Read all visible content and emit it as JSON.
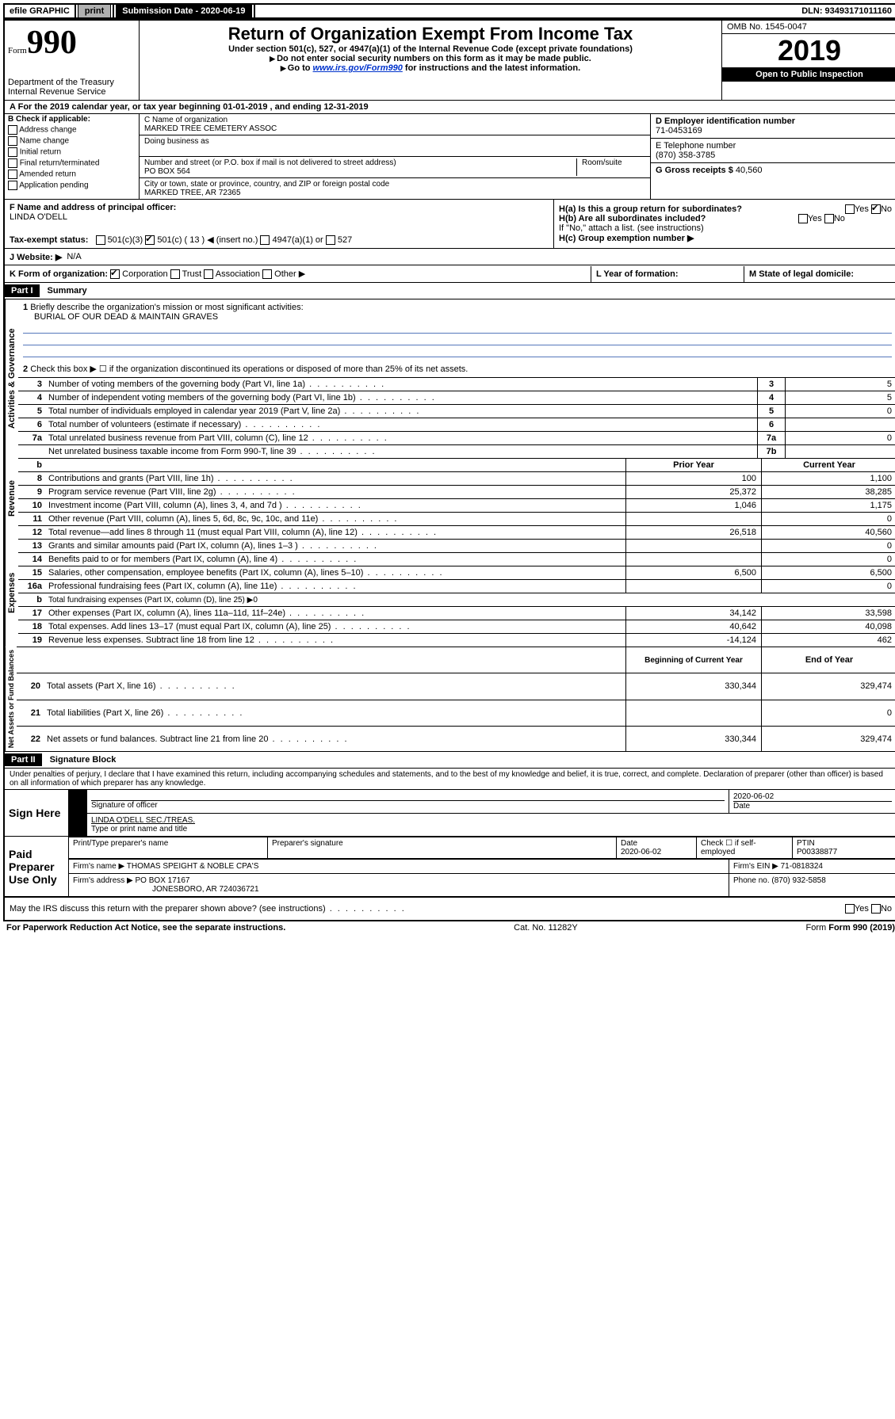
{
  "topbar": {
    "efile": "efile GRAPHIC",
    "print": "print",
    "sub_label": "Submission Date - 2020-06-19",
    "dln": "DLN: 93493171011160"
  },
  "header": {
    "form_label": "Form",
    "form_num": "990",
    "dept": "Department of the Treasury\nInternal Revenue Service",
    "title": "Return of Organization Exempt From Income Tax",
    "sub1": "Under section 501(c), 527, or 4947(a)(1) of the Internal Revenue Code (except private foundations)",
    "sub2": "Do not enter social security numbers on this form as it may be made public.",
    "sub3_pre": "Go to ",
    "sub3_link": "www.irs.gov/Form990",
    "sub3_post": " for instructions and the latest information.",
    "omb": "OMB No. 1545-0047",
    "year": "2019",
    "inspect": "Open to Public Inspection"
  },
  "a_line": "For the 2019 calendar year, or tax year beginning 01-01-2019   , and ending 12-31-2019",
  "b": {
    "title": "B Check if applicable:",
    "r1": "Address change",
    "r2": "Name change",
    "r3": "Initial return",
    "r4": "Final return/terminated",
    "r5": "Amended return",
    "r6": "Application pending"
  },
  "c": {
    "name_label": "C Name of organization",
    "name": "MARKED TREE CEMETERY ASSOC",
    "dba": "Doing business as",
    "addr_label": "Number and street (or P.O. box if mail is not delivered to street address)",
    "room": "Room/suite",
    "addr": "PO BOX 564",
    "city_label": "City or town, state or province, country, and ZIP or foreign postal code",
    "city": "MARKED TREE, AR  72365"
  },
  "d": {
    "label": "D Employer identification number",
    "val": "71-0453169"
  },
  "e": {
    "label": "E Telephone number",
    "val": "(870) 358-3785"
  },
  "g": {
    "label": "G Gross receipts $",
    "val": "40,560"
  },
  "f": {
    "label": "F  Name and address of principal officer:",
    "val": "LINDA O'DELL"
  },
  "h": {
    "a": "H(a)  Is this a group return for subordinates?",
    "b": "H(b)  Are all subordinates included?",
    "b_note": "If \"No,\" attach a list. (see instructions)",
    "c": "H(c)  Group exemption number ▶",
    "yes": "Yes",
    "no": "No"
  },
  "i": {
    "label": "Tax-exempt status:",
    "o1": "501(c)(3)",
    "o2": "501(c) ( 13 ) ◀ (insert no.)",
    "o3": "4947(a)(1) or",
    "o4": "527"
  },
  "j": {
    "label": "J    Website: ▶",
    "val": "N/A"
  },
  "k": {
    "label": "K Form of organization:",
    "o1": "Corporation",
    "o2": "Trust",
    "o3": "Association",
    "o4": "Other ▶"
  },
  "l": {
    "label": "L Year of formation:"
  },
  "m": {
    "label": "M State of legal domicile:"
  },
  "part1": {
    "title": "Part I",
    "sub": "Summary",
    "q1": "Briefly describe the organization's mission or most significant activities:",
    "q1a": "BURIAL OF OUR DEAD & MAINTAIN GRAVES",
    "q2": "Check this box ▶ ☐  if the organization discontinued its operations or disposed of more than 25% of its net assets.",
    "sections": {
      "ag": "Activities & Governance",
      "rev": "Revenue",
      "exp": "Expenses",
      "net": "Net Assets or Fund Balances"
    },
    "rows_single": [
      {
        "n": "3",
        "t": "Number of voting members of the governing body (Part VI, line 1a)",
        "c": "3",
        "v": "5"
      },
      {
        "n": "4",
        "t": "Number of independent voting members of the governing body (Part VI, line 1b)",
        "c": "4",
        "v": "5"
      },
      {
        "n": "5",
        "t": "Total number of individuals employed in calendar year 2019 (Part V, line 2a)",
        "c": "5",
        "v": "0"
      },
      {
        "n": "6",
        "t": "Total number of volunteers (estimate if necessary)",
        "c": "6",
        "v": ""
      },
      {
        "n": "7a",
        "t": "Total unrelated business revenue from Part VIII, column (C), line 12",
        "c": "7a",
        "v": "0"
      },
      {
        "n": "",
        "t": "Net unrelated business taxable income from Form 990-T, line 39",
        "c": "7b",
        "v": ""
      }
    ],
    "col_headers": {
      "b": "b",
      "py": "Prior Year",
      "cy": "Current Year",
      "bcy": "Beginning of Current Year",
      "eoy": "End of Year"
    },
    "rows_rev": [
      {
        "n": "8",
        "t": "Contributions and grants (Part VIII, line 1h)",
        "py": "100",
        "cy": "1,100"
      },
      {
        "n": "9",
        "t": "Program service revenue (Part VIII, line 2g)",
        "py": "25,372",
        "cy": "38,285"
      },
      {
        "n": "10",
        "t": "Investment income (Part VIII, column (A), lines 3, 4, and 7d )",
        "py": "1,046",
        "cy": "1,175"
      },
      {
        "n": "11",
        "t": "Other revenue (Part VIII, column (A), lines 5, 6d, 8c, 9c, 10c, and 11e)",
        "py": "",
        "cy": "0"
      },
      {
        "n": "12",
        "t": "Total revenue—add lines 8 through 11 (must equal Part VIII, column (A), line 12)",
        "py": "26,518",
        "cy": "40,560"
      }
    ],
    "rows_exp": [
      {
        "n": "13",
        "t": "Grants and similar amounts paid (Part IX, column (A), lines 1–3 )",
        "py": "",
        "cy": "0"
      },
      {
        "n": "14",
        "t": "Benefits paid to or for members (Part IX, column (A), line 4)",
        "py": "",
        "cy": "0"
      },
      {
        "n": "15",
        "t": "Salaries, other compensation, employee benefits (Part IX, column (A), lines 5–10)",
        "py": "6,500",
        "cy": "6,500"
      },
      {
        "n": "16a",
        "t": "Professional fundraising fees (Part IX, column (A), line 11e)",
        "py": "",
        "cy": "0"
      },
      {
        "n": "b",
        "t": "Total fundraising expenses (Part IX, column (D), line 25) ▶0",
        "py": null,
        "cy": null
      },
      {
        "n": "17",
        "t": "Other expenses (Part IX, column (A), lines 11a–11d, 11f–24e)",
        "py": "34,142",
        "cy": "33,598"
      },
      {
        "n": "18",
        "t": "Total expenses. Add lines 13–17 (must equal Part IX, column (A), line 25)",
        "py": "40,642",
        "cy": "40,098"
      },
      {
        "n": "19",
        "t": "Revenue less expenses. Subtract line 18 from line 12",
        "py": "-14,124",
        "cy": "462"
      }
    ],
    "rows_net": [
      {
        "n": "20",
        "t": "Total assets (Part X, line 16)",
        "py": "330,344",
        "cy": "329,474"
      },
      {
        "n": "21",
        "t": "Total liabilities (Part X, line 26)",
        "py": "",
        "cy": "0"
      },
      {
        "n": "22",
        "t": "Net assets or fund balances. Subtract line 21 from line 20",
        "py": "330,344",
        "cy": "329,474"
      }
    ]
  },
  "part2": {
    "title": "Part II",
    "sub": "Signature Block",
    "decl": "Under penalties of perjury, I declare that I have examined this return, including accompanying schedules and statements, and to the best of my knowledge and belief, it is true, correct, and complete. Declaration of preparer (other than officer) is based on all information of which preparer has any knowledge.",
    "sign_here": "Sign Here",
    "sig_officer": "Signature of officer",
    "date": "Date",
    "date_val": "2020-06-02",
    "name_title": "LINDA O'DELL SEC./TREAS.",
    "name_title_lbl": "Type or print name and title",
    "paid": "Paid Preparer Use Only",
    "prep_name": "Print/Type preparer's name",
    "prep_sig": "Preparer's signature",
    "prep_date_lbl": "Date",
    "prep_date": "2020-06-02",
    "self_emp": "Check ☐ if self-employed",
    "ptin_lbl": "PTIN",
    "ptin": "P00338877",
    "firm_name_lbl": "Firm's name    ▶",
    "firm_name": "THOMAS SPEIGHT & NOBLE CPA'S",
    "firm_ein_lbl": "Firm's EIN ▶",
    "firm_ein": "71-0818324",
    "firm_addr_lbl": "Firm's address ▶",
    "firm_addr1": "PO BOX 17167",
    "firm_addr2": "JONESBORO, AR  724036721",
    "phone_lbl": "Phone no.",
    "phone": "(870) 932-5858",
    "irs_q": "May the IRS discuss this return with the preparer shown above? (see instructions)",
    "y": "Yes",
    "n": "No"
  },
  "footer": {
    "l": "For Paperwork Reduction Act Notice, see the separate instructions.",
    "c": "Cat. No. 11282Y",
    "r": "Form 990 (2019)"
  }
}
